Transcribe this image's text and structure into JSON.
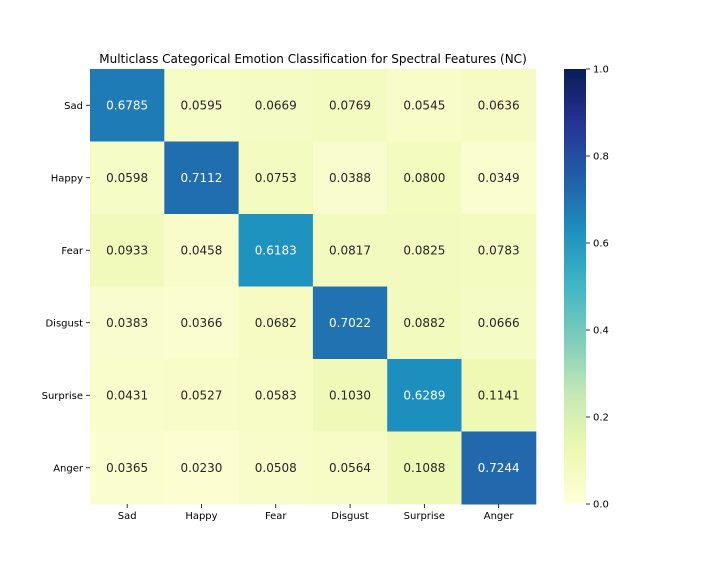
{
  "chart_data": {
    "type": "heatmap",
    "title": "Multiclass Categorical Emotion Classification for Spectral Features (NC)",
    "xlabel": "",
    "ylabel": "",
    "x_categories": [
      "Sad",
      "Happy",
      "Fear",
      "Disgust",
      "Surprise",
      "Anger"
    ],
    "y_categories": [
      "Sad",
      "Happy",
      "Fear",
      "Disgust",
      "Surprise",
      "Anger"
    ],
    "values": [
      [
        0.6785,
        0.0595,
        0.0669,
        0.0769,
        0.0545,
        0.0636
      ],
      [
        0.0598,
        0.7112,
        0.0753,
        0.0388,
        0.08,
        0.0349
      ],
      [
        0.0933,
        0.0458,
        0.6183,
        0.0817,
        0.0825,
        0.0783
      ],
      [
        0.0383,
        0.0366,
        0.0682,
        0.7022,
        0.0882,
        0.0666
      ],
      [
        0.0431,
        0.0527,
        0.0583,
        0.103,
        0.6289,
        0.1141
      ],
      [
        0.0365,
        0.023,
        0.0508,
        0.0564,
        0.1088,
        0.7244
      ]
    ],
    "value_labels": [
      [
        "0.6785",
        "0.0595",
        "0.0669",
        "0.0769",
        "0.0545",
        "0.0636"
      ],
      [
        "0.0598",
        "0.7112",
        "0.0753",
        "0.0388",
        "0.0800",
        "0.0349"
      ],
      [
        "0.0933",
        "0.0458",
        "0.6183",
        "0.0817",
        "0.0825",
        "0.0783"
      ],
      [
        "0.0383",
        "0.0366",
        "0.0682",
        "0.7022",
        "0.0882",
        "0.0666"
      ],
      [
        "0.0431",
        "0.0527",
        "0.0583",
        "0.1030",
        "0.6289",
        "0.1141"
      ],
      [
        "0.0365",
        "0.0230",
        "0.0508",
        "0.0564",
        "0.1088",
        "0.7244"
      ]
    ],
    "colorbar": {
      "range": [
        0,
        1
      ],
      "ticks": [
        0.0,
        0.2,
        0.4,
        0.6,
        0.8,
        1.0
      ],
      "tick_labels": [
        "0.0",
        "0.2",
        "0.4",
        "0.6",
        "0.8",
        "1.0"
      ],
      "colormap": "YlGnBu"
    },
    "grid": false
  },
  "colors": {
    "colormap_stops": [
      "#ffffd9",
      "#edf8b1",
      "#c7e9b4",
      "#7fcdbb",
      "#41b6c4",
      "#1d91c0",
      "#225ea8",
      "#253494",
      "#081d58"
    ],
    "dark_text": "#262626",
    "light_text": "#ffffff"
  }
}
